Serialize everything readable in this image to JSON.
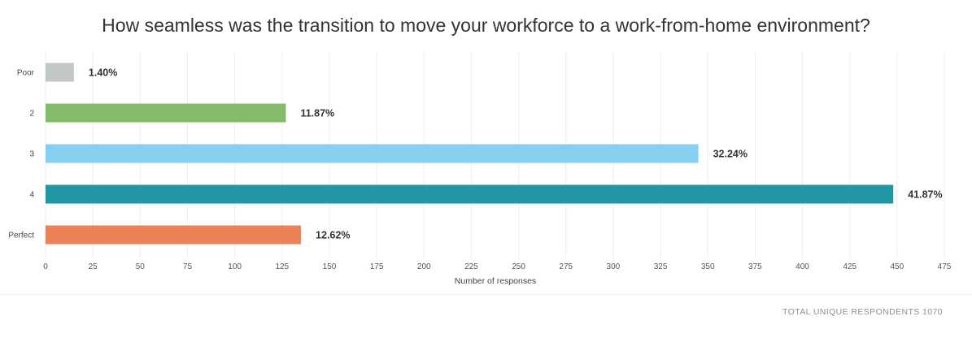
{
  "chart_data": {
    "type": "bar",
    "orientation": "horizontal",
    "title": "How seamless was the transition to move your workforce to a work-from-home environment?",
    "xlabel": "Number of responses",
    "categories": [
      "Poor",
      "2",
      "3",
      "4",
      "Perfect"
    ],
    "values": [
      15,
      127,
      345,
      448,
      135
    ],
    "data_labels": [
      "1.40%",
      "11.87%",
      "32.24%",
      "41.87%",
      "12.62%"
    ],
    "colors": [
      "#c2c7c7",
      "#85bc6a",
      "#87cff1",
      "#2097a3",
      "#ea8157"
    ],
    "xlim": [
      0,
      475
    ],
    "xticks": [
      0,
      25,
      50,
      75,
      100,
      125,
      150,
      175,
      200,
      225,
      250,
      275,
      300,
      325,
      350,
      375,
      400,
      425,
      450,
      475
    ],
    "grid": true
  },
  "footer": {
    "note": "TOTAL UNIQUE RESPONDENTS 1070"
  }
}
